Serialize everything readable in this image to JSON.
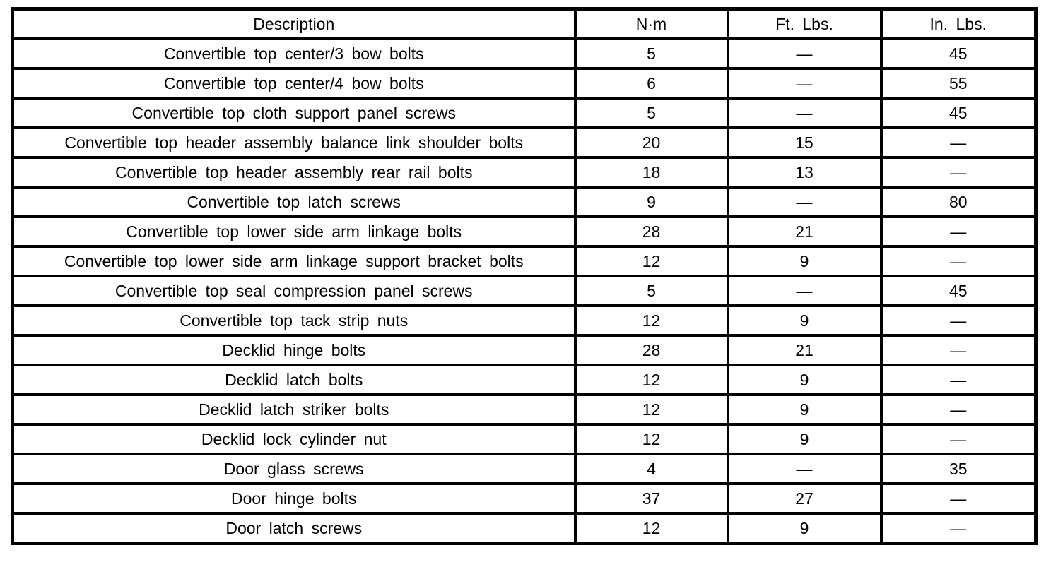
{
  "table": {
    "title": "torque-specifications",
    "headers": [
      "Description",
      "N·m",
      "Ft. Lbs.",
      "In. Lbs."
    ],
    "dash": "—",
    "rows": [
      [
        "Convertible top center/3 bow bolts",
        "5",
        "—",
        "45"
      ],
      [
        "Convertible top center/4 bow bolts",
        "6",
        "—",
        "55"
      ],
      [
        "Convertible top cloth support panel screws",
        "5",
        "—",
        "45"
      ],
      [
        "Convertible top header assembly balance link shoulder bolts",
        "20",
        "15",
        "—"
      ],
      [
        "Convertible top header assembly rear rail bolts",
        "18",
        "13",
        "—"
      ],
      [
        "Convertible top latch screws",
        "9",
        "—",
        "80"
      ],
      [
        "Convertible top lower side arm linkage bolts",
        "28",
        "21",
        "—"
      ],
      [
        "Convertible top lower side arm linkage support bracket bolts",
        "12",
        "9",
        "—"
      ],
      [
        "Convertible top seal compression panel screws",
        "5",
        "—",
        "45"
      ],
      [
        "Convertible top tack strip nuts",
        "12",
        "9",
        "—"
      ],
      [
        "Decklid hinge bolts",
        "28",
        "21",
        "—"
      ],
      [
        "Decklid latch bolts",
        "12",
        "9",
        "—"
      ],
      [
        "Decklid latch striker bolts",
        "12",
        "9",
        "—"
      ],
      [
        "Decklid lock cylinder nut",
        "12",
        "9",
        "—"
      ],
      [
        "Door glass screws",
        "4",
        "—",
        "35"
      ],
      [
        "Door hinge bolts",
        "37",
        "27",
        "—"
      ],
      [
        "Door latch screws",
        "12",
        "9",
        "—"
      ]
    ],
    "colors": {
      "border": "#000000",
      "text": "#000000",
      "background": "#ffffff"
    }
  }
}
